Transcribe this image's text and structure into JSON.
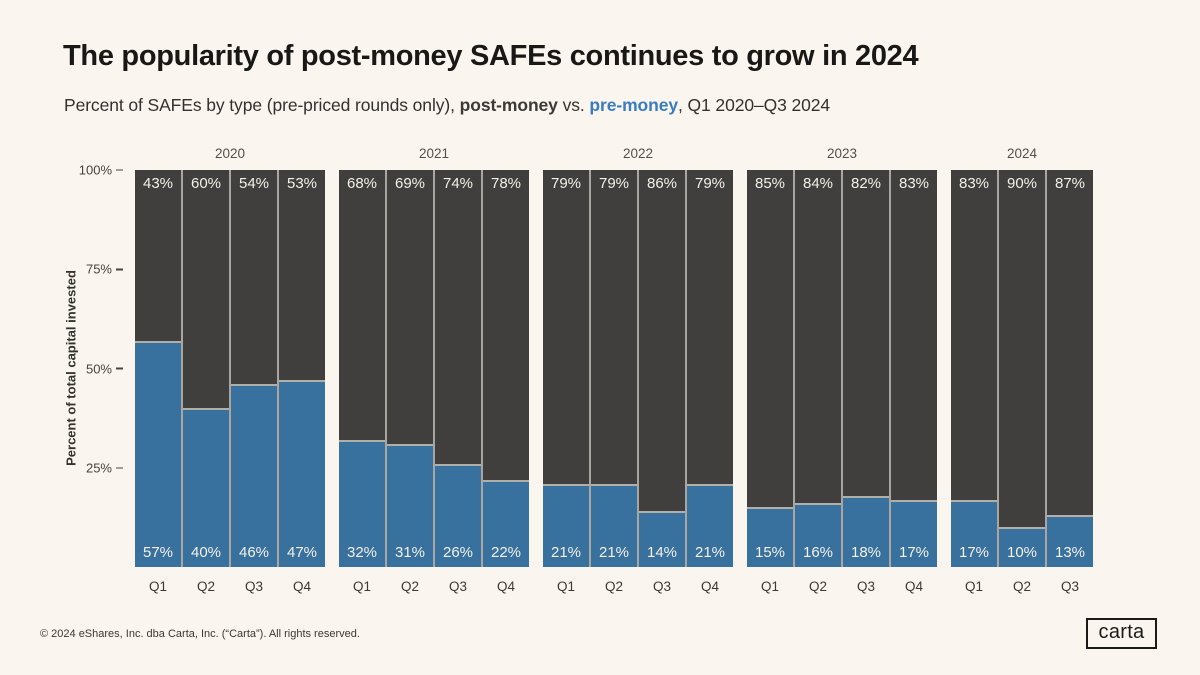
{
  "header": {
    "title": "The popularity of post-money SAFEs continues to grow in 2024",
    "subtitle_prefix": "Percent of SAFEs by type (pre-priced rounds only), ",
    "subtitle_post_label": "post-money",
    "subtitle_vs": " vs. ",
    "subtitle_pre_label": "pre-money",
    "subtitle_suffix": ", Q1 2020–Q3 2024"
  },
  "chart_data": {
    "type": "bar",
    "stacked": true,
    "title": "The popularity of post-money SAFEs continues to grow in 2024",
    "subtitle": "Percent of SAFEs by type (pre-priced rounds only), post-money vs. pre-money, Q1 2020–Q3 2024",
    "ylabel": "Percent of total capital invested",
    "ylim": [
      0,
      100
    ],
    "yticks": [
      {
        "label": "100%",
        "value": 100
      },
      {
        "label": "75%",
        "value": 75
      },
      {
        "label": "50%",
        "value": 50
      },
      {
        "label": "25%",
        "value": 25
      }
    ],
    "legend": {
      "post_money_color": "#413f3d",
      "pre_money_color": "#38719e"
    },
    "groups": [
      {
        "year": "2020",
        "quarters": [
          "Q1",
          "Q2",
          "Q3",
          "Q4"
        ],
        "post_money": [
          43,
          60,
          54,
          53
        ],
        "pre_money": [
          57,
          40,
          46,
          47
        ]
      },
      {
        "year": "2021",
        "quarters": [
          "Q1",
          "Q2",
          "Q3",
          "Q4"
        ],
        "post_money": [
          68,
          69,
          74,
          78
        ],
        "pre_money": [
          32,
          31,
          26,
          22
        ]
      },
      {
        "year": "2022",
        "quarters": [
          "Q1",
          "Q2",
          "Q3",
          "Q4"
        ],
        "post_money": [
          79,
          79,
          86,
          79
        ],
        "pre_money": [
          21,
          21,
          14,
          21
        ]
      },
      {
        "year": "2023",
        "quarters": [
          "Q1",
          "Q2",
          "Q3",
          "Q4"
        ],
        "post_money": [
          85,
          84,
          82,
          83
        ],
        "pre_money": [
          15,
          16,
          18,
          17
        ]
      },
      {
        "year": "2024",
        "quarters": [
          "Q1",
          "Q2",
          "Q3"
        ],
        "post_money": [
          83,
          90,
          87
        ],
        "pre_money": [
          17,
          10,
          13
        ]
      }
    ]
  },
  "footer": {
    "copyright": "© 2024 eShares, Inc. dba Carta, Inc. (“Carta”). All rights reserved.",
    "logo_text": "carta"
  }
}
